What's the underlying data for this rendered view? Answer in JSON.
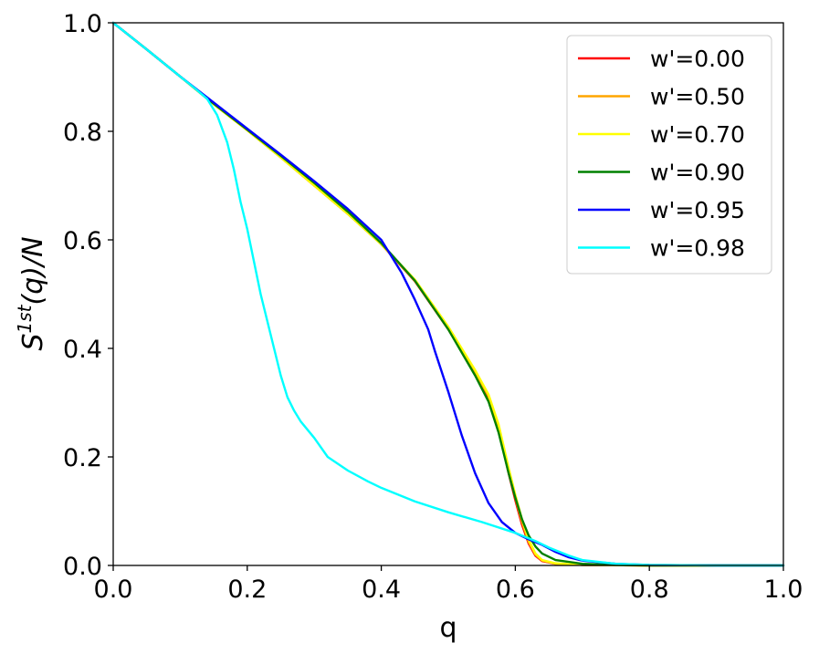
{
  "chart_data": {
    "type": "line",
    "xlabel": "q",
    "ylabel_base": "S",
    "ylabel_sup": "1st",
    "ylabel_rest": "(q)/N",
    "xlim": [
      0,
      1
    ],
    "ylim": [
      0,
      1
    ],
    "x_ticks": [
      0.0,
      0.2,
      0.4,
      0.6,
      0.8,
      1.0
    ],
    "y_ticks": [
      0.0,
      0.2,
      0.4,
      0.6,
      0.8,
      1.0
    ],
    "x_tick_labels": [
      "0.0",
      "0.2",
      "0.4",
      "0.6",
      "0.8",
      "1.0"
    ],
    "y_tick_labels": [
      "0.0",
      "0.2",
      "0.4",
      "0.6",
      "0.8",
      "1.0"
    ],
    "grid": false,
    "legend_position": "top-right",
    "series": [
      {
        "name": "w'=0.00",
        "color": "#ff0000",
        "points": [
          [
            0.0,
            1.0
          ],
          [
            0.05,
            0.951
          ],
          [
            0.1,
            0.901
          ],
          [
            0.15,
            0.85
          ],
          [
            0.2,
            0.802
          ],
          [
            0.25,
            0.752
          ],
          [
            0.3,
            0.7
          ],
          [
            0.35,
            0.648
          ],
          [
            0.4,
            0.592
          ],
          [
            0.45,
            0.524
          ],
          [
            0.5,
            0.435
          ],
          [
            0.54,
            0.355
          ],
          [
            0.56,
            0.31
          ],
          [
            0.575,
            0.25
          ],
          [
            0.59,
            0.17
          ],
          [
            0.6,
            0.12
          ],
          [
            0.61,
            0.075
          ],
          [
            0.62,
            0.04
          ],
          [
            0.63,
            0.018
          ],
          [
            0.64,
            0.008
          ],
          [
            0.66,
            0.003
          ],
          [
            0.7,
            0.001
          ],
          [
            0.8,
            0.0
          ],
          [
            1.0,
            0.0
          ]
        ]
      },
      {
        "name": "w'=0.50",
        "color": "#ffa500",
        "points": [
          [
            0.0,
            1.0
          ],
          [
            0.05,
            0.951
          ],
          [
            0.1,
            0.901
          ],
          [
            0.15,
            0.85
          ],
          [
            0.2,
            0.802
          ],
          [
            0.25,
            0.752
          ],
          [
            0.3,
            0.7
          ],
          [
            0.35,
            0.648
          ],
          [
            0.4,
            0.592
          ],
          [
            0.45,
            0.525
          ],
          [
            0.5,
            0.437
          ],
          [
            0.54,
            0.357
          ],
          [
            0.56,
            0.312
          ],
          [
            0.575,
            0.255
          ],
          [
            0.59,
            0.175
          ],
          [
            0.6,
            0.125
          ],
          [
            0.61,
            0.08
          ],
          [
            0.62,
            0.043
          ],
          [
            0.63,
            0.02
          ],
          [
            0.64,
            0.009
          ],
          [
            0.66,
            0.003
          ],
          [
            0.7,
            0.001
          ],
          [
            0.8,
            0.0
          ],
          [
            1.0,
            0.0
          ]
        ]
      },
      {
        "name": "w'=0.70",
        "color": "#ffff00",
        "points": [
          [
            0.0,
            1.0
          ],
          [
            0.05,
            0.951
          ],
          [
            0.1,
            0.901
          ],
          [
            0.15,
            0.85
          ],
          [
            0.2,
            0.802
          ],
          [
            0.25,
            0.752
          ],
          [
            0.3,
            0.7
          ],
          [
            0.35,
            0.648
          ],
          [
            0.4,
            0.592
          ],
          [
            0.45,
            0.527
          ],
          [
            0.5,
            0.44
          ],
          [
            0.54,
            0.36
          ],
          [
            0.56,
            0.315
          ],
          [
            0.575,
            0.26
          ],
          [
            0.59,
            0.18
          ],
          [
            0.6,
            0.13
          ],
          [
            0.61,
            0.085
          ],
          [
            0.62,
            0.047
          ],
          [
            0.63,
            0.022
          ],
          [
            0.64,
            0.01
          ],
          [
            0.66,
            0.004
          ],
          [
            0.7,
            0.001
          ],
          [
            0.8,
            0.0
          ],
          [
            1.0,
            0.0
          ]
        ]
      },
      {
        "name": "w'=0.90",
        "color": "#008000",
        "points": [
          [
            0.0,
            1.0
          ],
          [
            0.05,
            0.951
          ],
          [
            0.1,
            0.901
          ],
          [
            0.15,
            0.851
          ],
          [
            0.2,
            0.803
          ],
          [
            0.25,
            0.755
          ],
          [
            0.3,
            0.705
          ],
          [
            0.35,
            0.652
          ],
          [
            0.4,
            0.594
          ],
          [
            0.45,
            0.525
          ],
          [
            0.5,
            0.435
          ],
          [
            0.54,
            0.35
          ],
          [
            0.56,
            0.302
          ],
          [
            0.575,
            0.245
          ],
          [
            0.59,
            0.17
          ],
          [
            0.6,
            0.125
          ],
          [
            0.61,
            0.085
          ],
          [
            0.62,
            0.055
          ],
          [
            0.63,
            0.035
          ],
          [
            0.64,
            0.022
          ],
          [
            0.66,
            0.01
          ],
          [
            0.7,
            0.003
          ],
          [
            0.75,
            0.001
          ],
          [
            0.8,
            0.0
          ],
          [
            1.0,
            0.0
          ]
        ]
      },
      {
        "name": "w'=0.95",
        "color": "#0000ff",
        "points": [
          [
            0.0,
            1.0
          ],
          [
            0.05,
            0.951
          ],
          [
            0.1,
            0.901
          ],
          [
            0.15,
            0.853
          ],
          [
            0.2,
            0.805
          ],
          [
            0.25,
            0.757
          ],
          [
            0.3,
            0.708
          ],
          [
            0.35,
            0.657
          ],
          [
            0.4,
            0.6
          ],
          [
            0.43,
            0.54
          ],
          [
            0.45,
            0.49
          ],
          [
            0.47,
            0.435
          ],
          [
            0.48,
            0.395
          ],
          [
            0.5,
            0.32
          ],
          [
            0.52,
            0.24
          ],
          [
            0.54,
            0.17
          ],
          [
            0.56,
            0.115
          ],
          [
            0.58,
            0.08
          ],
          [
            0.6,
            0.06
          ],
          [
            0.62,
            0.048
          ],
          [
            0.64,
            0.038
          ],
          [
            0.66,
            0.025
          ],
          [
            0.68,
            0.015
          ],
          [
            0.7,
            0.009
          ],
          [
            0.75,
            0.003
          ],
          [
            0.8,
            0.001
          ],
          [
            0.9,
            0.0
          ],
          [
            1.0,
            0.0
          ]
        ]
      },
      {
        "name": "w'=0.98",
        "color": "#00ffff",
        "points": [
          [
            0.0,
            1.0
          ],
          [
            0.05,
            0.951
          ],
          [
            0.1,
            0.901
          ],
          [
            0.125,
            0.876
          ],
          [
            0.14,
            0.86
          ],
          [
            0.155,
            0.83
          ],
          [
            0.17,
            0.78
          ],
          [
            0.18,
            0.73
          ],
          [
            0.19,
            0.67
          ],
          [
            0.2,
            0.62
          ],
          [
            0.21,
            0.56
          ],
          [
            0.22,
            0.5
          ],
          [
            0.23,
            0.45
          ],
          [
            0.24,
            0.4
          ],
          [
            0.25,
            0.35
          ],
          [
            0.26,
            0.31
          ],
          [
            0.27,
            0.285
          ],
          [
            0.28,
            0.265
          ],
          [
            0.3,
            0.235
          ],
          [
            0.32,
            0.2
          ],
          [
            0.35,
            0.175
          ],
          [
            0.38,
            0.155
          ],
          [
            0.4,
            0.143
          ],
          [
            0.45,
            0.118
          ],
          [
            0.5,
            0.098
          ],
          [
            0.55,
            0.08
          ],
          [
            0.6,
            0.06
          ],
          [
            0.63,
            0.045
          ],
          [
            0.65,
            0.033
          ],
          [
            0.68,
            0.018
          ],
          [
            0.7,
            0.01
          ],
          [
            0.75,
            0.003
          ],
          [
            0.8,
            0.001
          ],
          [
            0.9,
            0.0
          ],
          [
            1.0,
            0.0
          ]
        ]
      }
    ]
  }
}
